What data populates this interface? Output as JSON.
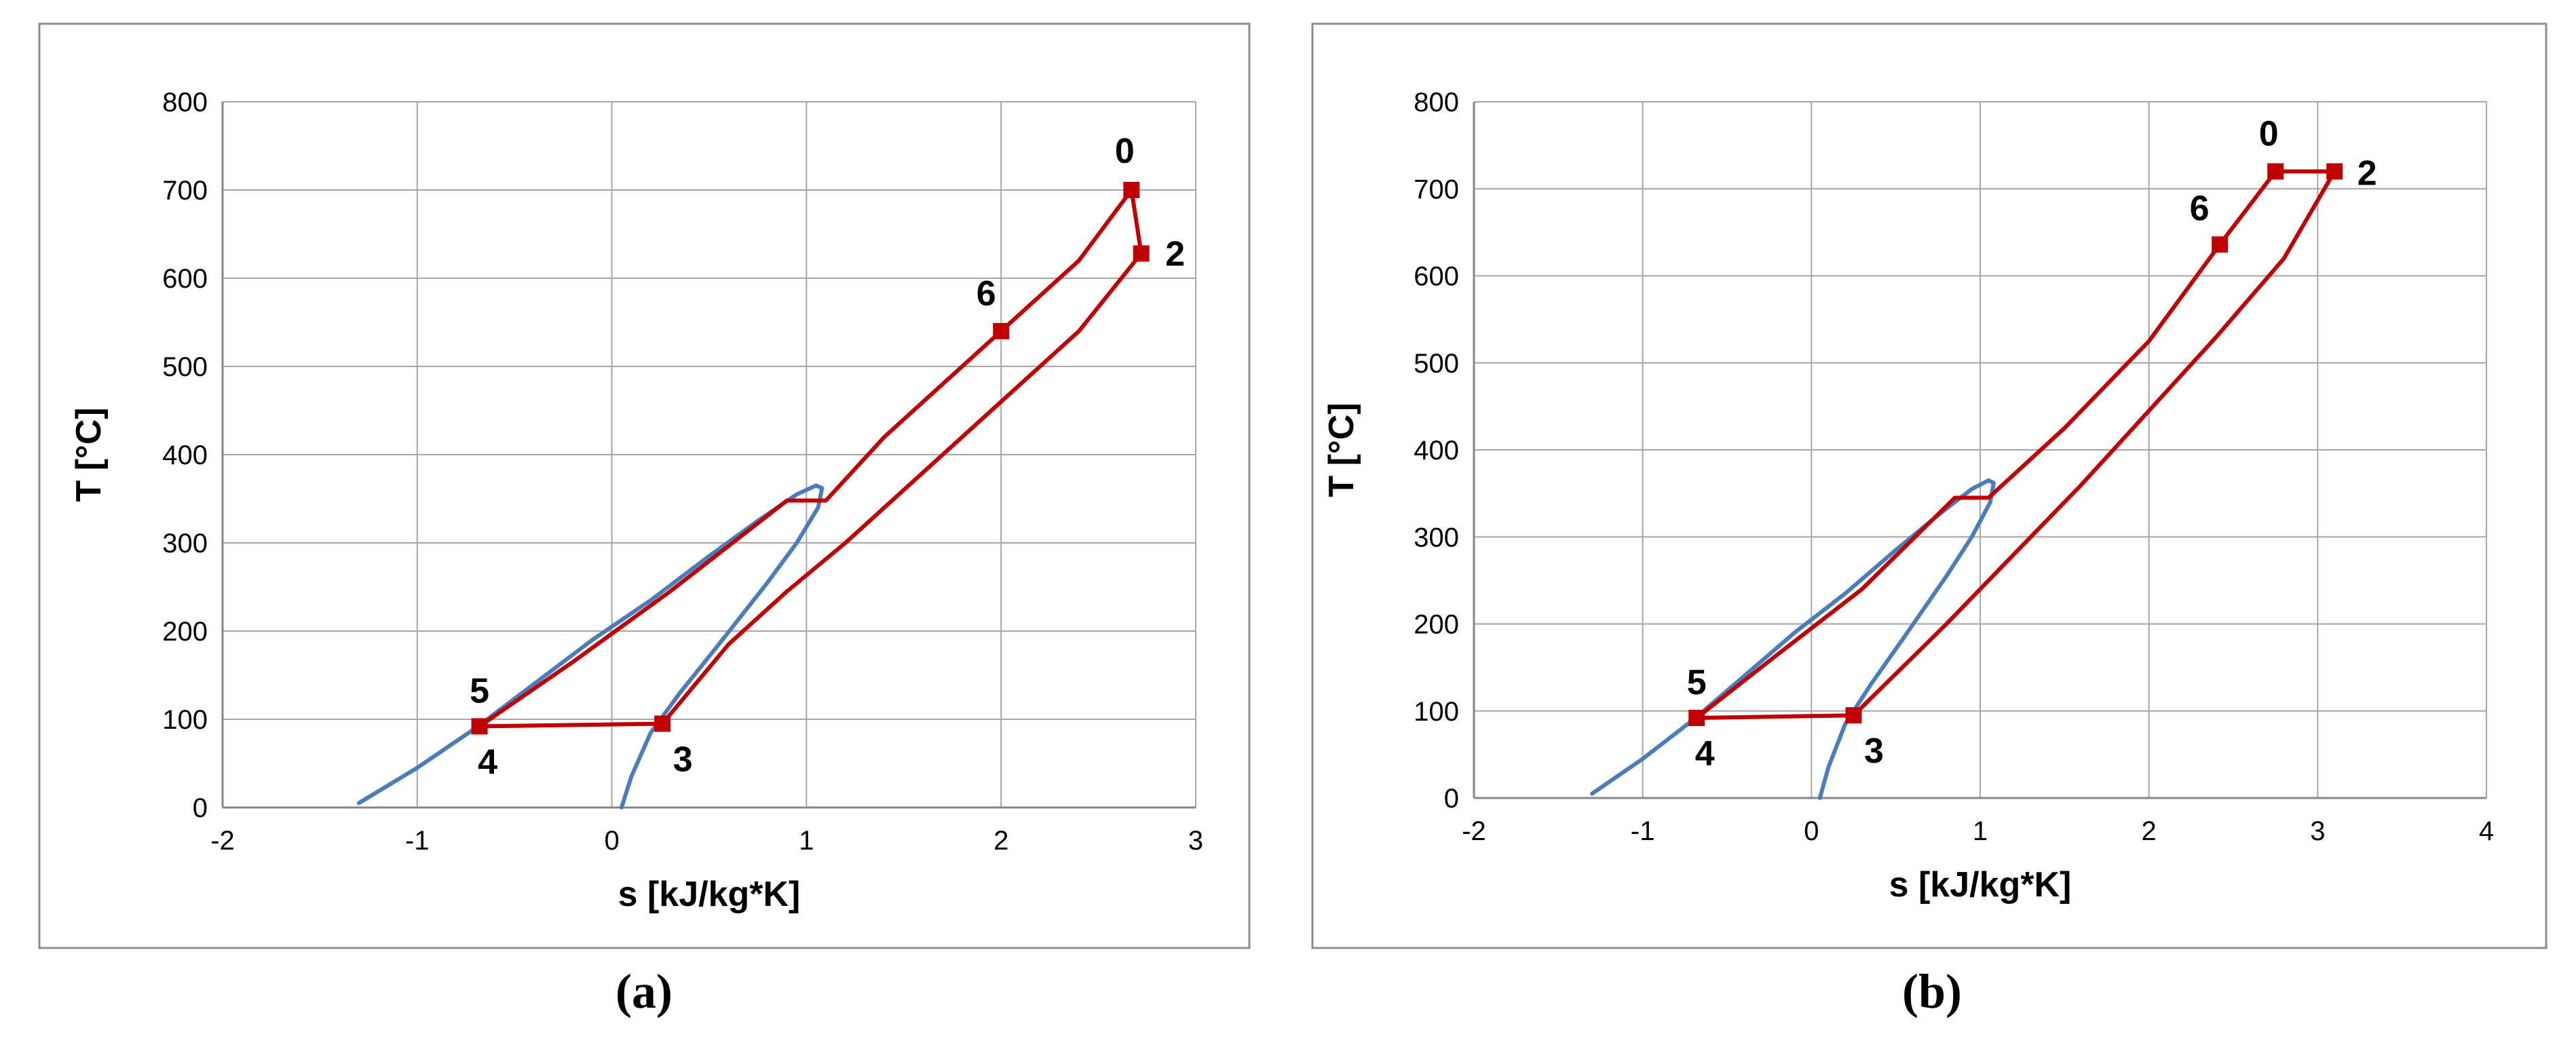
{
  "chart_data": [
    {
      "type": "line",
      "panel_label": "(a)",
      "xlabel": "s [kJ/kg*K]",
      "ylabel": "T  [°C]",
      "xlim": [
        -2,
        3
      ],
      "ylim": [
        0,
        800
      ],
      "xticks": [
        -2,
        -1,
        0,
        1,
        2,
        3
      ],
      "yticks": [
        0,
        100,
        200,
        300,
        400,
        500,
        600,
        700,
        800
      ],
      "grid": true,
      "legend": "none",
      "colors": {
        "saturation": "#4a7ebb",
        "cycle": "#c00000"
      },
      "series": [
        {
          "kind": "saturation-dome",
          "x": [
            -1.3,
            -1.0,
            -0.7,
            -0.4,
            -0.1,
            0.2,
            0.5,
            0.75,
            0.95,
            1.05,
            1.08,
            1.06,
            0.95,
            0.8,
            0.55,
            0.35,
            0.2,
            0.1,
            0.05
          ],
          "y": [
            5,
            45,
            90,
            140,
            190,
            235,
            285,
            325,
            355,
            365,
            362,
            340,
            300,
            255,
            185,
            130,
            85,
            35,
            0
          ]
        },
        {
          "kind": "cycle",
          "x": [
            2.67,
            2.72,
            2.4,
            2.0,
            1.6,
            1.2,
            0.9,
            0.6,
            0.26,
            -0.68,
            -0.68,
            -0.2,
            0.3,
            0.9,
            1.1,
            1.4,
            2.0,
            2.4,
            2.67
          ],
          "y": [
            700,
            628,
            540,
            460,
            380,
            300,
            245,
            185,
            95,
            92,
            92,
            165,
            245,
            348,
            348,
            420,
            540,
            620,
            700
          ]
        }
      ],
      "points": [
        {
          "label": "0",
          "x": 2.67,
          "y": 700
        },
        {
          "label": "2",
          "x": 2.72,
          "y": 628
        },
        {
          "label": "6",
          "x": 2.0,
          "y": 540
        },
        {
          "label": "3",
          "x": 0.26,
          "y": 95
        },
        {
          "label": "4",
          "x": -0.68,
          "y": 92
        },
        {
          "label": "5",
          "x": -0.68,
          "y": 92
        }
      ]
    },
    {
      "type": "line",
      "panel_label": "(b)",
      "xlabel": "s [kJ/kg*K]",
      "ylabel": "T  [°C]",
      "xlim": [
        -2,
        4
      ],
      "ylim": [
        0,
        800
      ],
      "xticks": [
        -2,
        -1,
        0,
        1,
        2,
        3,
        4
      ],
      "yticks": [
        0,
        100,
        200,
        300,
        400,
        500,
        600,
        700,
        800
      ],
      "grid": true,
      "legend": "none",
      "colors": {
        "saturation": "#4a7ebb",
        "cycle": "#c00000"
      },
      "series": [
        {
          "kind": "saturation-dome",
          "x": [
            -1.3,
            -1.0,
            -0.7,
            -0.4,
            -0.1,
            0.2,
            0.5,
            0.75,
            0.95,
            1.05,
            1.08,
            1.06,
            0.95,
            0.8,
            0.55,
            0.35,
            0.2,
            0.1,
            0.05
          ],
          "y": [
            5,
            45,
            90,
            140,
            190,
            235,
            285,
            325,
            355,
            365,
            362,
            340,
            300,
            255,
            185,
            130,
            85,
            35,
            0
          ]
        },
        {
          "kind": "cycle",
          "x": [
            2.75,
            3.1,
            2.8,
            2.4,
            2.0,
            1.6,
            1.2,
            0.8,
            0.25,
            -0.68,
            -0.68,
            -0.2,
            0.3,
            0.85,
            1.05,
            1.5,
            2.0,
            2.42,
            2.75
          ],
          "y": [
            720,
            720,
            620,
            530,
            445,
            360,
            280,
            200,
            95,
            92,
            92,
            165,
            240,
            345,
            345,
            425,
            525,
            636,
            720
          ]
        }
      ],
      "points": [
        {
          "label": "0",
          "x": 2.75,
          "y": 720
        },
        {
          "label": "2",
          "x": 3.1,
          "y": 720
        },
        {
          "label": "6",
          "x": 2.42,
          "y": 636
        },
        {
          "label": "3",
          "x": 0.25,
          "y": 95
        },
        {
          "label": "4",
          "x": -0.68,
          "y": 92
        },
        {
          "label": "5",
          "x": -0.68,
          "y": 92
        }
      ]
    }
  ]
}
